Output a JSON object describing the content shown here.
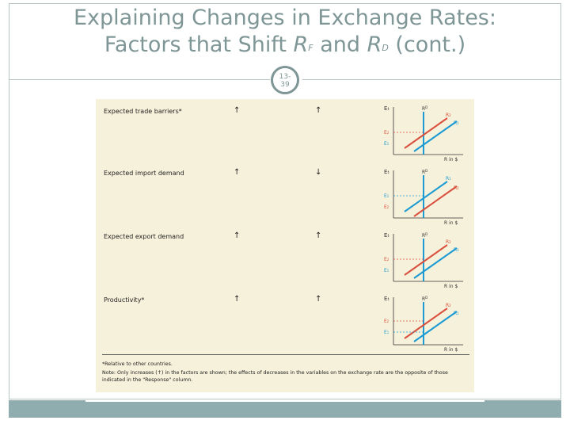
{
  "slide": {
    "title_line1": "Explaining Changes in Exchange Rates:",
    "title_line2_prefix": "Factors that Shift ",
    "title_rf_base": "R",
    "title_rf_sup": "F",
    "title_and": " and ",
    "title_rd_base": "R",
    "title_rd_sup": "D",
    "title_suffix": " (cont.)",
    "slide_number_top": "13-",
    "slide_number_bottom": "39"
  },
  "table": {
    "rows": [
      {
        "label": "Expected trade barriers*",
        "change": "↑",
        "response": "↑"
      },
      {
        "label": "Expected import demand",
        "change": "↑",
        "response": "↓"
      },
      {
        "label": "Expected export demand",
        "change": "↑",
        "response": "↑"
      },
      {
        "label": "Productivity*",
        "change": "↑",
        "response": "↑"
      }
    ],
    "graph_labels": {
      "y_axis": "E",
      "y_axis_sub": "t",
      "x_axis": "R in $",
      "rd": "R",
      "rd_sup": "D",
      "rf": "R",
      "rf_sup": "F",
      "sub1": "1",
      "sub2": "2",
      "e": "E",
      "e1": "1",
      "e2": "2"
    },
    "footnote1": "*Relative to other countries.",
    "footnote2_a": "Note: Only increases (↑) in the factors are shown; the effects of decreases in the variables on the exchange rate are the opposite of those",
    "footnote2_b": "indicated in the \"Response\" column."
  },
  "colors": {
    "title": "#7f9696",
    "bar": "#8fadae",
    "red_curve": "#d9503f",
    "blue_curve": "#1b9ad3",
    "table_bg": "#f6f1da"
  }
}
